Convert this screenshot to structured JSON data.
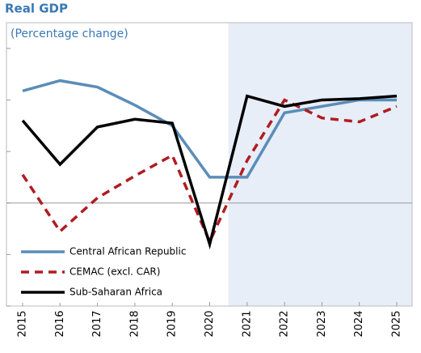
{
  "chart_data": {
    "type": "line",
    "title": "Real GDP",
    "subtitle": "(Percentage change)",
    "categories": [
      "2015",
      "2016",
      "2017",
      "2018",
      "2019",
      "2020",
      "2021",
      "2022",
      "2023",
      "2024",
      "2025"
    ],
    "series": [
      {
        "name": "Central African Republic",
        "color": "#5b8db8",
        "dash": "solid",
        "values": [
          4.35,
          4.75,
          4.5,
          3.8,
          3.0,
          1.0,
          1.0,
          3.5,
          3.75,
          4.0,
          4.0
        ]
      },
      {
        "name": "CEMAC (excl. CAR)",
        "color": "#b01c22",
        "dash": "dashed",
        "values": [
          1.1,
          -1.1,
          0.2,
          1.05,
          1.85,
          -1.5,
          1.65,
          4.0,
          3.3,
          3.15,
          3.75
        ]
      },
      {
        "name": "Sub-Saharan Africa",
        "color": "#000000",
        "dash": "solid",
        "values": [
          3.2,
          1.5,
          2.95,
          3.25,
          3.1,
          -1.6,
          4.15,
          3.75,
          4.0,
          4.05,
          4.15
        ]
      }
    ],
    "ylim": [
      -4,
      7
    ],
    "yticks": [
      -4,
      -2,
      0,
      2,
      4,
      6
    ],
    "shaded_from": "2021",
    "shade_color": "#e8eef8",
    "legend": "lower left"
  }
}
